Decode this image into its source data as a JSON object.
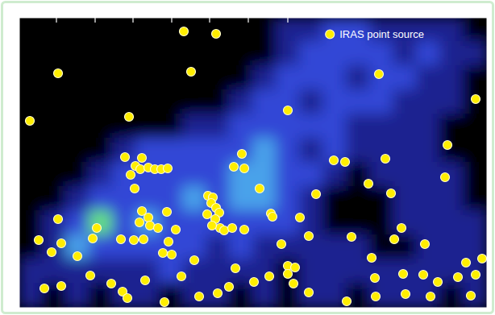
{
  "chart_data": {
    "type": "scatter",
    "xlim": [
      0,
      58
    ],
    "ylim": [
      0,
      36
    ],
    "xticks": [
      4.6,
      9.4,
      14.1,
      18.9,
      23.6,
      28.4,
      33.3
    ],
    "tick_labels": false,
    "legend": "upper right",
    "cells": [
      [
        0,
        0,
        0,
        0,
        0,
        0,
        0,
        0,
        0,
        0,
        0,
        1,
        1,
        2,
        2,
        1,
        1,
        1,
        1,
        0
      ],
      [
        0,
        0,
        0,
        0,
        0,
        0,
        0,
        0,
        0,
        0,
        0,
        1,
        2,
        2,
        2,
        2,
        1,
        2,
        1,
        1
      ],
      [
        0,
        0,
        0,
        0,
        0,
        0,
        0,
        0,
        0,
        0,
        1,
        2,
        2,
        2,
        1,
        2,
        2,
        1,
        1,
        0
      ],
      [
        0,
        0,
        0,
        0,
        0,
        0,
        0,
        0,
        0,
        1,
        2,
        2,
        1,
        2,
        2,
        2,
        1,
        1,
        1,
        0
      ],
      [
        0,
        0,
        0,
        0,
        0,
        0,
        0,
        1,
        1,
        2,
        2,
        2,
        2,
        2,
        1,
        1,
        1,
        1,
        0,
        0
      ],
      [
        0,
        0,
        0,
        0,
        1,
        2,
        2,
        2,
        2,
        2,
        3,
        2,
        1,
        2,
        1,
        1,
        1,
        1,
        0,
        0
      ],
      [
        0,
        0,
        0,
        1,
        2,
        2,
        2,
        2,
        2,
        3,
        3,
        2,
        2,
        1,
        0,
        1,
        1,
        1,
        1,
        0
      ],
      [
        0,
        0,
        1,
        2,
        2,
        2,
        2,
        3,
        2,
        3,
        3,
        2,
        1,
        0,
        0,
        0,
        1,
        1,
        1,
        0
      ],
      [
        0,
        1,
        2,
        4,
        2,
        3,
        2,
        2,
        2,
        2,
        2,
        2,
        1,
        0,
        0,
        0,
        1,
        1,
        1,
        1
      ],
      [
        0,
        1,
        3,
        2,
        2,
        2,
        2,
        2,
        1,
        2,
        1,
        1,
        1,
        1,
        1,
        0,
        0,
        1,
        1,
        1
      ],
      [
        1,
        1,
        1,
        1,
        1,
        1,
        2,
        1,
        1,
        1,
        1,
        0,
        1,
        1,
        1,
        1,
        1,
        1,
        1,
        1
      ],
      [
        1,
        0,
        1,
        0,
        1,
        1,
        0,
        1,
        1,
        0,
        1,
        0,
        1,
        1,
        0,
        1,
        1,
        1,
        0,
        1
      ]
    ],
    "series": [
      {
        "name": "IRAS point source",
        "color": "#ffee00",
        "marker": "circle",
        "x": [
          20.4,
          24.4,
          4.8,
          21.3,
          44.6,
          56.6,
          1.3,
          13.6,
          33.3,
          27.6,
          13.1,
          15.2,
          14.4,
          15.0,
          16.0,
          16.8,
          17.6,
          18.4,
          13.8,
          26.6,
          27.9,
          39.0,
          40.4,
          53.1,
          45.4,
          29.8,
          14.3,
          23.4,
          24.0,
          23.8,
          24.4,
          24.8,
          23.3,
          24.3,
          24.9,
          25.4,
          26.4,
          23.9,
          31.2,
          31.4,
          34.8,
          36.8,
          46.1,
          52.8,
          43.3,
          18.3,
          15.2,
          16.0,
          14.9,
          9.6,
          4.8,
          16.2,
          17.2,
          19.4,
          27.9,
          2.4,
          5.2,
          9.1,
          12.6,
          14.2,
          15.4,
          18.5,
          35.9,
          32.5,
          41.2,
          47.4,
          46.5,
          50.3,
          17.8,
          18.9,
          21.7,
          26.8,
          4.0,
          7.2,
          43.7,
          55.4,
          57.4,
          33.3,
          34.2,
          33.3,
          31.0,
          29.1,
          26.0,
          34.0,
          24.6,
          22.3,
          20.1,
          15.6,
          8.8,
          5.2,
          3.1,
          11.4,
          12.8,
          18.0,
          13.4,
          35.9,
          44.1,
          47.6,
          50.1,
          51.9,
          54.4,
          56.6,
          40.6,
          44.2,
          47.9,
          51.0,
          56.0
        ],
        "values": [
          34.3,
          34.0,
          29.1,
          29.3,
          29.0,
          25.9,
          23.2,
          23.7,
          24.5,
          19.1,
          18.7,
          18.6,
          17.6,
          17.2,
          17.4,
          17.2,
          17.2,
          17.3,
          16.5,
          17.5,
          17.3,
          18.3,
          18.1,
          20.2,
          18.5,
          14.8,
          14.8,
          13.9,
          13.7,
          13.0,
          12.4,
          11.8,
          11.6,
          11.0,
          9.9,
          9.6,
          9.9,
          10.2,
          11.7,
          11.3,
          11.2,
          14.1,
          14.2,
          16.2,
          15.4,
          11.9,
          12.0,
          11.2,
          10.6,
          9.9,
          11.0,
          10.2,
          9.9,
          9.7,
          9.7,
          8.4,
          8.0,
          8.6,
          8.5,
          8.4,
          8.5,
          8.2,
          8.9,
          7.9,
          8.8,
          9.9,
          8.5,
          7.9,
          6.8,
          6.6,
          5.9,
          4.9,
          6.9,
          6.4,
          6.2,
          5.6,
          6.1,
          5.2,
          5.0,
          4.2,
          3.9,
          3.2,
          2.6,
          3.0,
          1.8,
          1.4,
          3.9,
          3.4,
          4.0,
          2.7,
          2.4,
          3.0,
          2.0,
          0.7,
          1.2,
          1.9,
          3.7,
          4.2,
          4.1,
          3.2,
          3.8,
          4.1,
          0.8,
          1.4,
          1.7,
          1.4,
          1.5
        ]
      }
    ]
  }
}
